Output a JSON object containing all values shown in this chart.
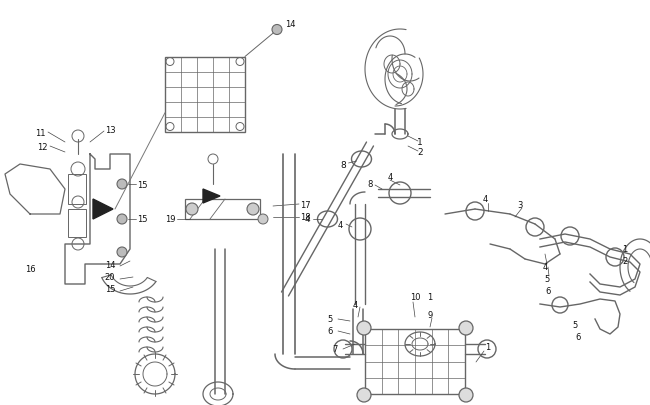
{
  "bg_color": "#ffffff",
  "lc": "#666666",
  "dc": "#222222",
  "lc2": "#888888",
  "fig_width": 6.5,
  "fig_height": 4.06,
  "dpi": 100,
  "xlim": [
    0,
    650
  ],
  "ylim": [
    0,
    406
  ]
}
